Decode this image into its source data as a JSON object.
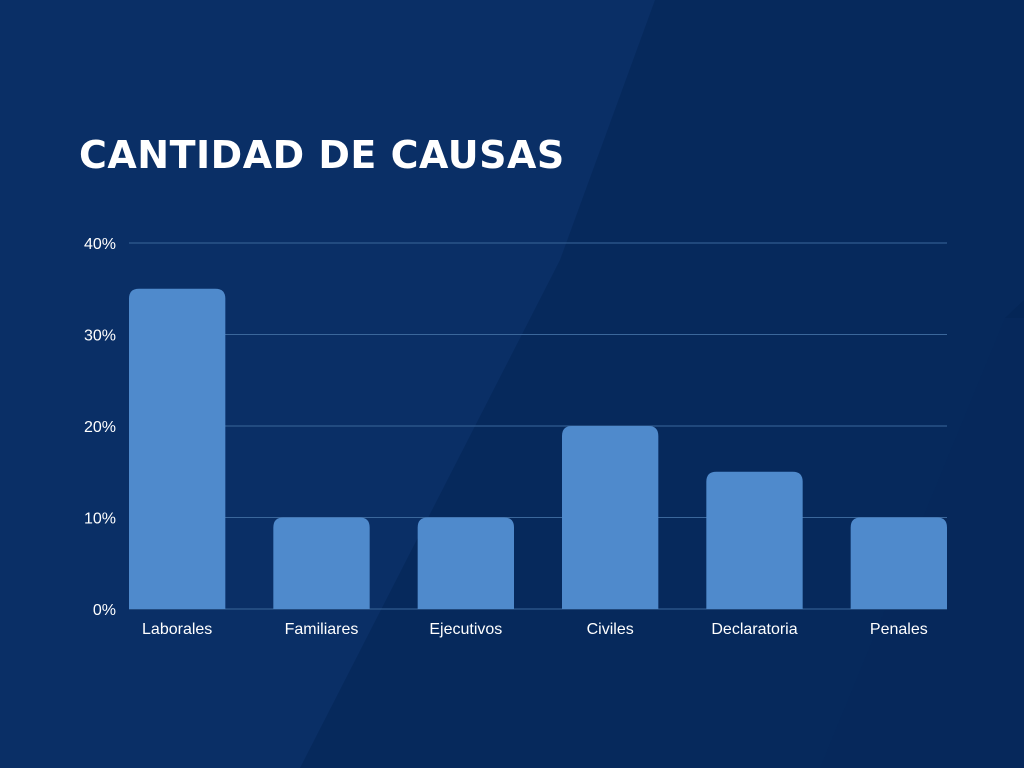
{
  "colors": {
    "background": "#0a2f66",
    "background_shape": "#05285a",
    "bar": "#4f8acc",
    "gridline": "#3b679b",
    "text": "#ffffff"
  },
  "chart_data": {
    "type": "bar",
    "title": "CANTIDAD DE CAUSAS",
    "xlabel": "",
    "ylabel": "",
    "categories": [
      "Laborales",
      "Familiares",
      "Ejecutivos",
      "Civiles",
      "Declaratoria",
      "Penales"
    ],
    "values": [
      35,
      10,
      10,
      20,
      15,
      10
    ],
    "value_unit": "%",
    "ylim": [
      0,
      40
    ],
    "yticks": [
      0,
      10,
      20,
      30,
      40
    ],
    "ytick_labels": [
      "0%",
      "10%",
      "20%",
      "30%",
      "40%"
    ],
    "grid": true,
    "legend": "none"
  }
}
